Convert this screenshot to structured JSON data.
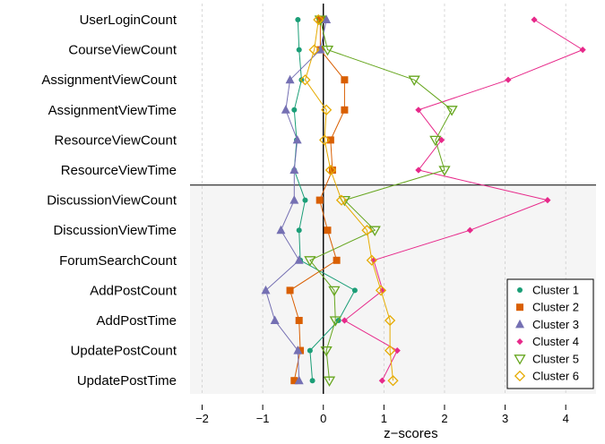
{
  "chart_data": {
    "type": "line",
    "orientation": "horizontal",
    "title": "",
    "xlabel": "z−scores",
    "ylabel": "",
    "xlim": [
      -2.2,
      4.5
    ],
    "x_ticks": [
      -2,
      -1,
      0,
      1,
      2,
      3,
      4
    ],
    "x_tick_labels": [
      "−2",
      "−1",
      "0",
      "1",
      "2",
      "3",
      "4"
    ],
    "categories": [
      "UserLoginCount",
      "CourseViewCount",
      "AssignmentViewCount",
      "AssignmentViewTime",
      "ResourceViewCount",
      "ResourceViewTime",
      "DiscussionViewCount",
      "DiscussionViewTime",
      "ForumSearchCount",
      "AddPostCount",
      "AddPostTime",
      "UpdatePostCount",
      "UpdatePostTime"
    ],
    "shaded_from_category_index": 6,
    "grid": "vertical dashed",
    "legend_position": "bottom-right",
    "series": [
      {
        "name": "Cluster 1",
        "color": "#1b9e77",
        "marker": "circle",
        "values": [
          -0.42,
          -0.4,
          -0.36,
          -0.48,
          -0.44,
          -0.48,
          -0.3,
          -0.4,
          -0.38,
          0.52,
          0.25,
          -0.22,
          -0.18
        ]
      },
      {
        "name": "Cluster 2",
        "color": "#d95f02",
        "marker": "square",
        "values": [
          -0.05,
          -0.05,
          0.35,
          0.35,
          0.12,
          0.15,
          -0.06,
          0.07,
          0.22,
          -0.55,
          -0.4,
          -0.38,
          -0.48
        ]
      },
      {
        "name": "Cluster 3",
        "color": "#7570b3",
        "marker": "triangle-up",
        "values": [
          0.05,
          -0.05,
          -0.55,
          -0.62,
          -0.43,
          -0.48,
          -0.48,
          -0.7,
          -0.4,
          -0.95,
          -0.8,
          -0.42,
          -0.4
        ]
      },
      {
        "name": "Cluster 4",
        "color": "#e7298a",
        "marker": "diamond",
        "values": [
          3.48,
          4.28,
          3.05,
          1.57,
          1.95,
          1.57,
          3.7,
          2.42,
          0.83,
          0.98,
          0.35,
          1.22,
          0.97
        ]
      },
      {
        "name": "Cluster 5",
        "color": "#66a61e",
        "marker": "triangle-down",
        "values": [
          -0.05,
          0.07,
          1.5,
          2.12,
          1.85,
          2.0,
          0.35,
          0.85,
          -0.22,
          0.18,
          0.2,
          0.05,
          0.1
        ]
      },
      {
        "name": "Cluster 6",
        "color": "#e6ab02",
        "marker": "diamond-open",
        "values": [
          -0.08,
          -0.15,
          -0.3,
          0.05,
          0.02,
          0.12,
          0.3,
          0.72,
          0.8,
          0.95,
          1.1,
          1.1,
          1.15
        ]
      }
    ]
  }
}
